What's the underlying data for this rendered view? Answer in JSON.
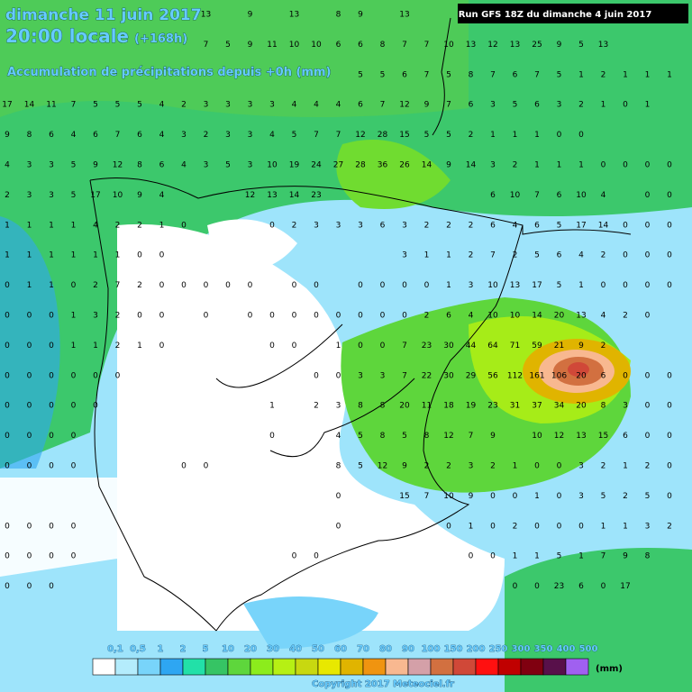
{
  "header": {
    "date": "dimanche 11 juin 2017",
    "time": "20:00 locale",
    "offset": "(+168h)",
    "subtitle": "Accumulation de précipitations depuis +0h (mm)",
    "run": "Run GFS 18Z du dimanche 4 juin 2017"
  },
  "grid": {
    "rows": [
      [
        null,
        null,
        null,
        null,
        null,
        null,
        null,
        null,
        null,
        13,
        null,
        9,
        null,
        13,
        null,
        8,
        9,
        null,
        13,
        null,
        null,
        null,
        null,
        null,
        null,
        null,
        null,
        null,
        null,
        null,
        null
      ],
      [
        null,
        null,
        null,
        null,
        null,
        null,
        null,
        null,
        null,
        7,
        5,
        9,
        11,
        10,
        10,
        6,
        6,
        8,
        7,
        7,
        10,
        13,
        12,
        13,
        25,
        9,
        5,
        13,
        null,
        null,
        null
      ],
      [
        null,
        null,
        null,
        null,
        null,
        null,
        null,
        null,
        null,
        null,
        null,
        null,
        null,
        null,
        null,
        null,
        5,
        5,
        6,
        7,
        5,
        8,
        7,
        6,
        7,
        5,
        1,
        2,
        1,
        1,
        1
      ],
      [
        17,
        14,
        11,
        7,
        5,
        5,
        5,
        4,
        2,
        3,
        3,
        3,
        3,
        4,
        4,
        4,
        6,
        7,
        12,
        9,
        7,
        6,
        3,
        5,
        6,
        3,
        2,
        1,
        0,
        1,
        null
      ],
      [
        9,
        8,
        6,
        4,
        6,
        7,
        6,
        4,
        3,
        2,
        3,
        3,
        4,
        5,
        7,
        7,
        12,
        28,
        15,
        5,
        5,
        2,
        1,
        1,
        1,
        0,
        0,
        null,
        null,
        null,
        null
      ],
      [
        4,
        3,
        3,
        5,
        9,
        12,
        8,
        6,
        4,
        3,
        5,
        3,
        10,
        19,
        24,
        27,
        28,
        36,
        26,
        14,
        9,
        14,
        3,
        2,
        1,
        1,
        1,
        0,
        0,
        0,
        0
      ],
      [
        2,
        3,
        3,
        5,
        17,
        10,
        9,
        4,
        null,
        null,
        null,
        12,
        13,
        14,
        23,
        null,
        null,
        null,
        null,
        null,
        null,
        null,
        6,
        10,
        7,
        6,
        10,
        4,
        null,
        0,
        0
      ],
      [
        1,
        1,
        1,
        1,
        4,
        2,
        2,
        1,
        0,
        null,
        null,
        null,
        0,
        2,
        3,
        3,
        3,
        6,
        3,
        2,
        2,
        2,
        6,
        4,
        6,
        5,
        17,
        14,
        0,
        0,
        0
      ],
      [
        1,
        1,
        1,
        1,
        1,
        1,
        0,
        0,
        null,
        null,
        null,
        null,
        null,
        null,
        null,
        null,
        null,
        null,
        3,
        1,
        1,
        2,
        7,
        2,
        5,
        6,
        4,
        2,
        0,
        0,
        0
      ],
      [
        0,
        1,
        1,
        0,
        2,
        7,
        2,
        0,
        0,
        0,
        0,
        0,
        null,
        0,
        0,
        null,
        0,
        0,
        0,
        0,
        1,
        3,
        10,
        13,
        17,
        5,
        1,
        0,
        0,
        0,
        0
      ],
      [
        0,
        0,
        0,
        1,
        3,
        2,
        0,
        0,
        null,
        0,
        null,
        0,
        0,
        0,
        0,
        0,
        0,
        0,
        0,
        2,
        6,
        4,
        10,
        10,
        14,
        20,
        13,
        4,
        2,
        0,
        null
      ],
      [
        0,
        0,
        0,
        1,
        1,
        2,
        1,
        0,
        null,
        null,
        null,
        null,
        0,
        0,
        null,
        1,
        0,
        0,
        7,
        23,
        30,
        44,
        64,
        71,
        59,
        21,
        9,
        2,
        null,
        null,
        null
      ],
      [
        0,
        0,
        0,
        0,
        0,
        0,
        null,
        null,
        null,
        null,
        null,
        null,
        null,
        null,
        0,
        0,
        3,
        3,
        7,
        22,
        30,
        29,
        56,
        112,
        161,
        106,
        20,
        6,
        0,
        0,
        0
      ],
      [
        0,
        0,
        0,
        0,
        0,
        null,
        null,
        null,
        null,
        null,
        null,
        null,
        1,
        null,
        2,
        3,
        8,
        8,
        20,
        11,
        18,
        19,
        23,
        31,
        37,
        34,
        20,
        8,
        3,
        0,
        0
      ],
      [
        0,
        0,
        0,
        0,
        null,
        null,
        null,
        null,
        null,
        null,
        null,
        null,
        0,
        null,
        null,
        4,
        5,
        8,
        5,
        8,
        12,
        7,
        9,
        null,
        10,
        12,
        13,
        15,
        6,
        0,
        0
      ],
      [
        0,
        0,
        0,
        0,
        null,
        null,
        null,
        null,
        0,
        0,
        null,
        null,
        null,
        null,
        null,
        8,
        5,
        12,
        9,
        2,
        2,
        3,
        2,
        1,
        0,
        0,
        3,
        2,
        1,
        2,
        0
      ],
      [
        null,
        null,
        null,
        null,
        null,
        null,
        null,
        null,
        null,
        null,
        null,
        null,
        null,
        null,
        null,
        0,
        null,
        null,
        15,
        7,
        10,
        9,
        0,
        0,
        1,
        0,
        3,
        5,
        2,
        5,
        0
      ],
      [
        0,
        0,
        0,
        0,
        null,
        null,
        null,
        null,
        null,
        null,
        null,
        null,
        null,
        null,
        null,
        0,
        null,
        null,
        null,
        null,
        0,
        1,
        0,
        2,
        0,
        0,
        0,
        1,
        1,
        3,
        2
      ],
      [
        0,
        0,
        0,
        0,
        null,
        null,
        null,
        null,
        null,
        null,
        null,
        null,
        null,
        0,
        0,
        null,
        null,
        null,
        null,
        null,
        null,
        0,
        0,
        1,
        1,
        5,
        1,
        7,
        9,
        8,
        null
      ],
      [
        0,
        0,
        0,
        null,
        null,
        null,
        null,
        null,
        null,
        null,
        null,
        null,
        null,
        null,
        null,
        null,
        null,
        null,
        null,
        null,
        null,
        null,
        null,
        0,
        0,
        23,
        6,
        0,
        17,
        null,
        null
      ]
    ]
  },
  "legend": {
    "items": [
      {
        "label": "0,1",
        "color": "#ffffff"
      },
      {
        "label": "0,5",
        "color": "#b4ecfc"
      },
      {
        "label": "1",
        "color": "#78d4fa"
      },
      {
        "label": "2",
        "color": "#2ea6f2"
      },
      {
        "label": "5",
        "color": "#22e0a8"
      },
      {
        "label": "10",
        "color": "#36c464"
      },
      {
        "label": "20",
        "color": "#5ed63c"
      },
      {
        "label": "30",
        "color": "#8cec1c"
      },
      {
        "label": "40",
        "color": "#b6f014"
      },
      {
        "label": "50",
        "color": "#c8d810"
      },
      {
        "label": "60",
        "color": "#e8e800"
      },
      {
        "label": "70",
        "color": "#e0b400"
      },
      {
        "label": "80",
        "color": "#f09410"
      },
      {
        "label": "90",
        "color": "#f8b890"
      },
      {
        "label": "100",
        "color": "#d4a0a8"
      },
      {
        "label": "150",
        "color": "#d27040"
      },
      {
        "label": "200",
        "color": "#d04838"
      },
      {
        "label": "250",
        "color": "#ff1010"
      },
      {
        "label": "300",
        "color": "#c00000"
      },
      {
        "label": "350",
        "color": "#800010"
      },
      {
        "label": "400",
        "color": "#58104a"
      },
      {
        "label": "500",
        "color": "#a060f0"
      }
    ],
    "unit": "(mm)"
  },
  "footer": {
    "copyright": "Copyright 2017 Meteociel.fr"
  }
}
